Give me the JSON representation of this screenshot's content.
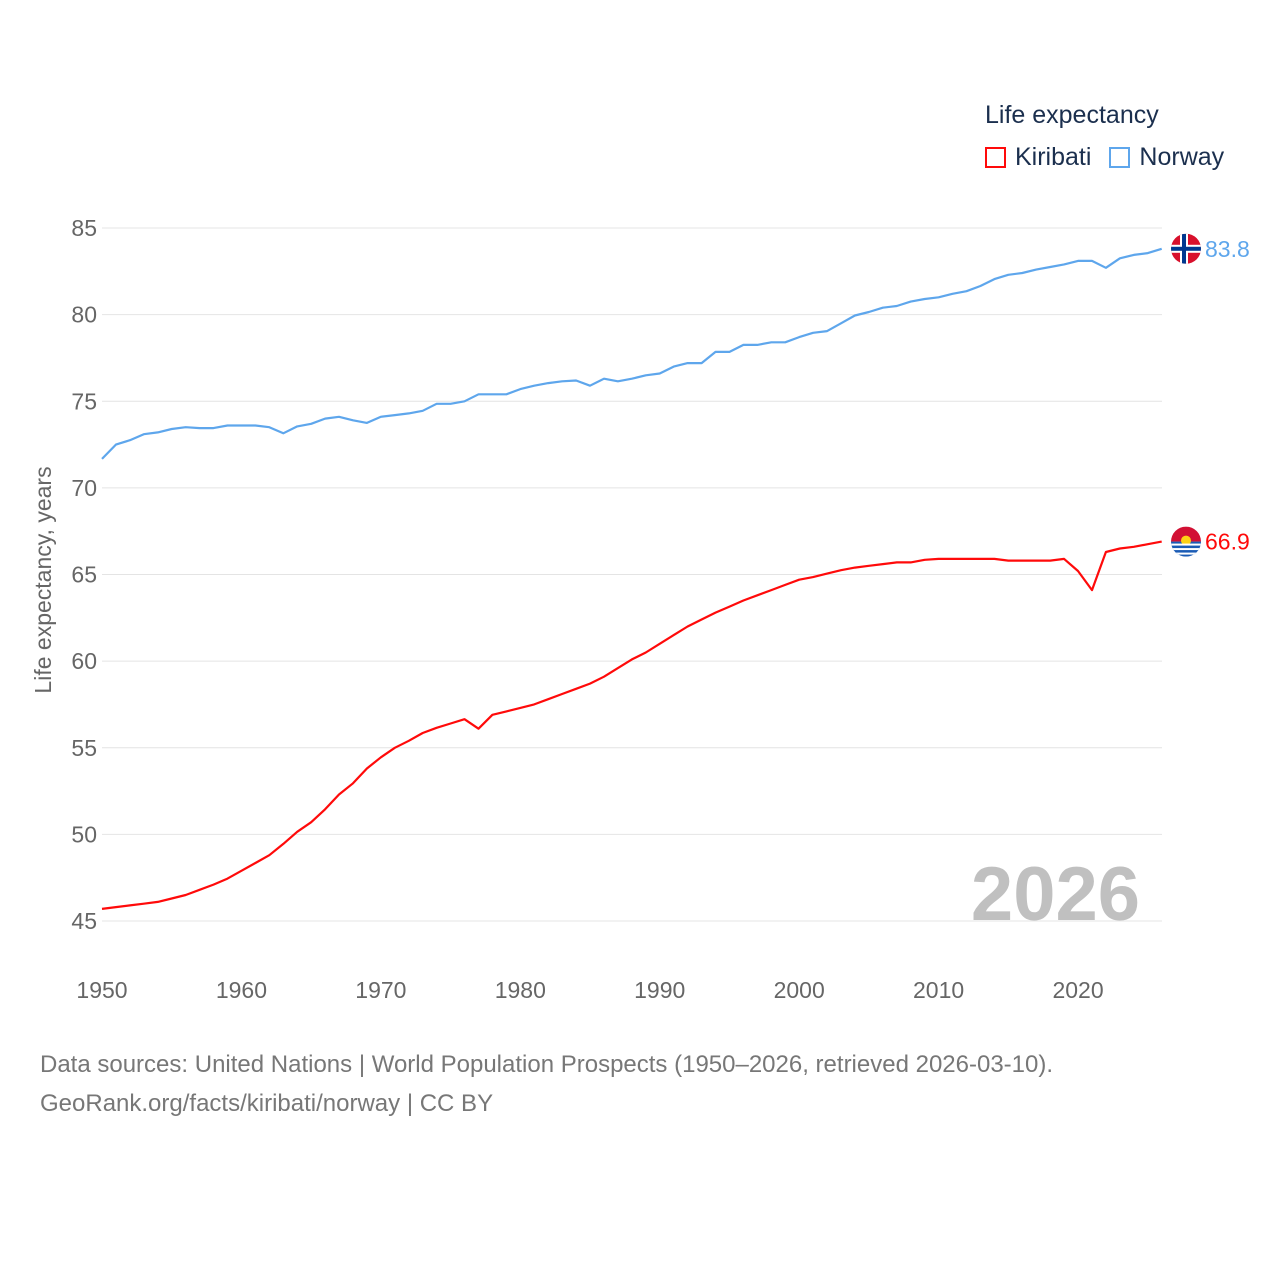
{
  "legend": {
    "title": "Life expectancy",
    "items": [
      {
        "label": "Kiribati",
        "color": "#ff0a0a"
      },
      {
        "label": "Norway",
        "color": "#5ea6ec"
      }
    ]
  },
  "watermark_year": "2026",
  "source_line1": "Data sources: United Nations | World Population Prospects (1950–2026, retrieved 2026-03-10).",
  "source_line2": "GeoRank.org/facts/kiribati/norway | CC BY",
  "chart_data": {
    "type": "line",
    "title": "Life expectancy",
    "xlabel": "",
    "ylabel": "Life expectancy, years",
    "xlim": [
      1950,
      2026
    ],
    "ylim": [
      45,
      85
    ],
    "xticks": [
      1950,
      1960,
      1970,
      1980,
      1990,
      2000,
      2010,
      2020
    ],
    "yticks": [
      45,
      50,
      55,
      60,
      65,
      70,
      75,
      80,
      85
    ],
    "grid": true,
    "legend_position": "top-right",
    "x_start": 1950,
    "series": [
      {
        "name": "Kiribati",
        "color": "#ff0a0a",
        "end_label": "66.9",
        "flag": "kiribati-flag",
        "values": [
          45.7,
          45.8,
          45.9,
          46.0,
          46.1,
          46.3,
          46.5,
          46.8,
          47.1,
          47.45,
          47.9,
          48.35,
          48.8,
          49.45,
          50.15,
          50.7,
          51.45,
          52.3,
          52.95,
          53.8,
          54.45,
          55.0,
          55.4,
          55.85,
          56.15,
          56.4,
          56.65,
          56.1,
          56.9,
          57.1,
          57.3,
          57.5,
          57.8,
          58.1,
          58.4,
          58.7,
          59.1,
          59.6,
          60.1,
          60.5,
          61.0,
          61.5,
          62.0,
          62.4,
          62.8,
          63.15,
          63.5,
          63.8,
          64.1,
          64.4,
          64.7,
          64.85,
          65.05,
          65.25,
          65.4,
          65.5,
          65.6,
          65.7,
          65.7,
          65.85,
          65.9,
          65.9,
          65.9,
          65.9,
          65.9,
          65.8,
          65.8,
          65.8,
          65.8,
          65.9,
          65.2,
          64.1,
          66.3,
          66.5,
          66.6,
          66.75,
          66.9
        ]
      },
      {
        "name": "Norway",
        "color": "#5ea6ec",
        "end_label": "83.8",
        "flag": "norway-flag",
        "values": [
          71.67,
          72.5,
          72.75,
          73.1,
          73.2,
          73.4,
          73.5,
          73.45,
          73.45,
          73.6,
          73.6,
          73.6,
          73.5,
          73.15,
          73.55,
          73.7,
          74.0,
          74.1,
          73.9,
          73.75,
          74.1,
          74.2,
          74.3,
          74.45,
          74.85,
          74.85,
          75.0,
          75.4,
          75.4,
          75.4,
          75.7,
          75.9,
          76.05,
          76.15,
          76.2,
          75.9,
          76.3,
          76.15,
          76.3,
          76.5,
          76.6,
          77.0,
          77.2,
          77.2,
          77.85,
          77.85,
          78.25,
          78.25,
          78.4,
          78.4,
          78.7,
          78.95,
          79.05,
          79.5,
          79.95,
          80.15,
          80.4,
          80.5,
          80.75,
          80.9,
          81.0,
          81.2,
          81.35,
          81.65,
          82.05,
          82.3,
          82.4,
          82.6,
          82.75,
          82.9,
          83.1,
          83.1,
          82.7,
          83.25,
          83.45,
          83.55,
          83.8
        ]
      }
    ]
  }
}
